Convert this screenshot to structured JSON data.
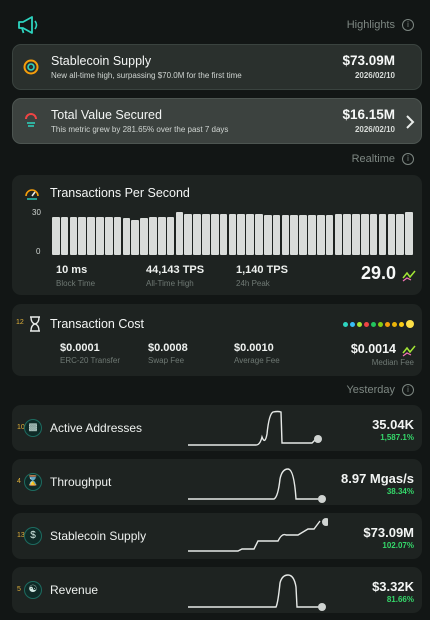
{
  "colors": {
    "accent_teal": "#2dd4bf",
    "positive_green": "#35d76a",
    "bar_fill": "#d9dcda",
    "card_bg": "#1e2321"
  },
  "header": {
    "icon": "megaphone-icon"
  },
  "sections": {
    "highlights": "Highlights",
    "realtime": "Realtime",
    "yesterday": "Yesterday"
  },
  "highlights": [
    {
      "title": "Stablecoin Supply",
      "subtitle": "New all-time high, surpassing $70.0M for the first time",
      "value": "$73.09M",
      "date": "2026/02/10",
      "icon": "stablecoin-icon"
    },
    {
      "title": "Total Value Secured",
      "subtitle": "This metric grew by 281.65% over the past 7 days",
      "value": "$16.15M",
      "date": "2026/02/10",
      "icon": "shield-icon"
    }
  ],
  "tps": {
    "title": "Transactions Per Second",
    "y_max_label": "30",
    "y_min_label": "0",
    "current": "29.0",
    "stats": [
      {
        "value": "10 ms",
        "label": "Block Time"
      },
      {
        "value": "44,143 TPS",
        "label": "All-Time High"
      },
      {
        "value": "1,140 TPS",
        "label": "24h Peak"
      }
    ]
  },
  "chart_data": {
    "type": "bar",
    "title": "Transactions Per Second",
    "ylim": [
      0,
      30
    ],
    "values": [
      26,
      26,
      26,
      26,
      26,
      26,
      26,
      26,
      25,
      24,
      25,
      26,
      26,
      26,
      29,
      28,
      28,
      28,
      28,
      28,
      28,
      28,
      28,
      28,
      27,
      27,
      27,
      27,
      27,
      27,
      27,
      27,
      28,
      28,
      28,
      28,
      28,
      28,
      28,
      28,
      29
    ]
  },
  "tx_cost": {
    "title": "Transaction Cost",
    "badge": "12",
    "median_value": "$0.0014",
    "median_label": "Median Fee",
    "dot_colors": [
      "#2dd4bf",
      "#38bdf8",
      "#a3e635",
      "#ef4444",
      "#22c55e",
      "#84cc16",
      "#f59e0b",
      "#eab308",
      "#facc15",
      "#fde047"
    ],
    "items": [
      {
        "value": "$0.0001",
        "label": "ERC-20 Transfer"
      },
      {
        "value": "$0.0008",
        "label": "Swap Fee"
      },
      {
        "value": "$0.0010",
        "label": "Average Fee"
      }
    ]
  },
  "metrics": [
    {
      "title": "Active Addresses",
      "value": "35.04K",
      "change": "1,587.1%",
      "num": "10",
      "icon": "address-card-icon"
    },
    {
      "title": "Throughput",
      "value": "8.97 Mgas/s",
      "change": "38.34%",
      "num": "4",
      "icon": "hourglass-icon"
    },
    {
      "title": "Stablecoin Supply",
      "value": "$73.09M",
      "change": "102.07%",
      "num": "13",
      "icon": "dollar-icon"
    },
    {
      "title": "Revenue",
      "value": "$3.32K",
      "change": "81.66%",
      "num": "5",
      "icon": "hand-coin-icon"
    }
  ]
}
